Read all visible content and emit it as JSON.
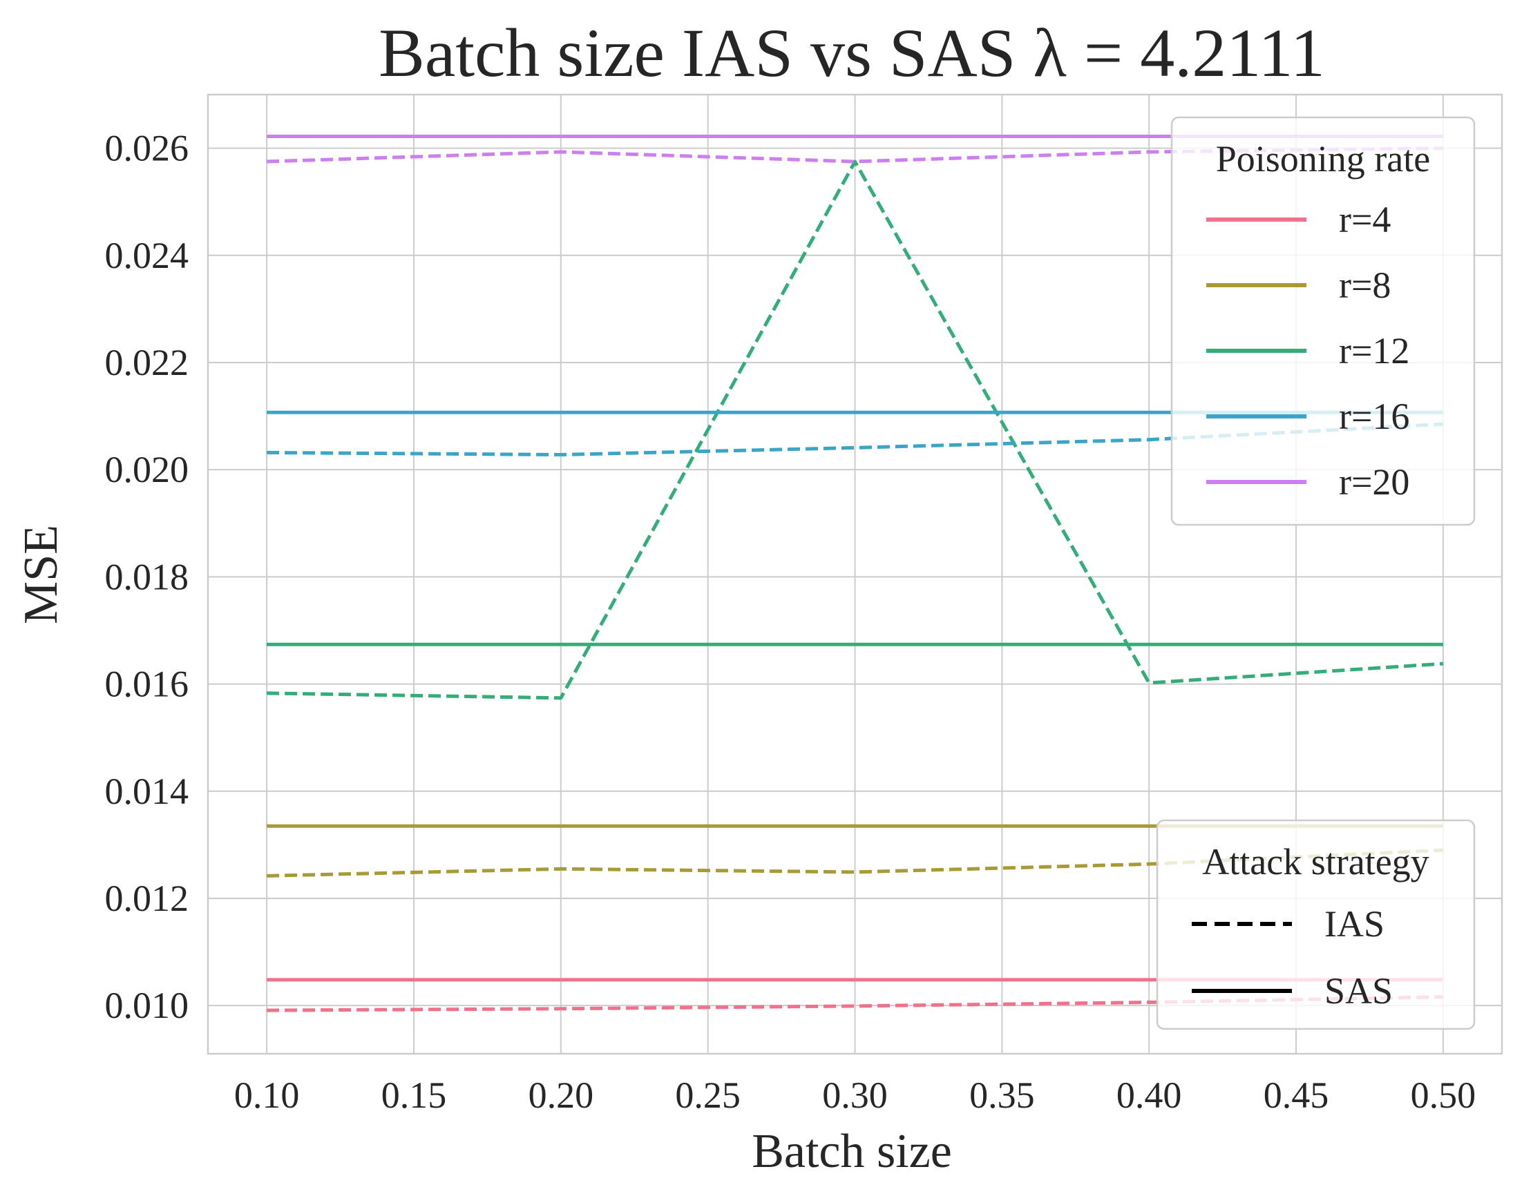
{
  "chart_data": {
    "type": "line",
    "title": "Batch size IAS vs SAS  λ = 4.2111",
    "xlabel": "Batch size",
    "ylabel": "MSE",
    "xlim": [
      0.08,
      0.52
    ],
    "ylim": [
      0.0091,
      0.027
    ],
    "x": [
      0.1,
      0.2,
      0.3,
      0.4,
      0.5
    ],
    "xticks": [
      "0.10",
      "0.15",
      "0.20",
      "0.25",
      "0.30",
      "0.35",
      "0.40",
      "0.45",
      "0.50"
    ],
    "yticks": [
      "0.010",
      "0.012",
      "0.014",
      "0.016",
      "0.018",
      "0.020",
      "0.022",
      "0.024",
      "0.026"
    ],
    "grid": true,
    "series": [
      {
        "name": "r=4",
        "strategy": "IAS",
        "color": "#f0718a",
        "values": [
          0.00991,
          0.00994,
          0.00999,
          0.01006,
          0.01016
        ]
      },
      {
        "name": "r=4",
        "strategy": "SAS",
        "color": "#f0718a",
        "values": [
          0.01048,
          0.01048,
          0.01048,
          0.01048,
          0.01048
        ]
      },
      {
        "name": "r=8",
        "strategy": "IAS",
        "color": "#a89a35",
        "values": [
          0.01242,
          0.01255,
          0.01249,
          0.01264,
          0.0129
        ]
      },
      {
        "name": "r=8",
        "strategy": "SAS",
        "color": "#a89a35",
        "values": [
          0.01335,
          0.01335,
          0.01335,
          0.01335,
          0.01335
        ]
      },
      {
        "name": "r=12",
        "strategy": "IAS",
        "color": "#34ad78",
        "values": [
          0.01583,
          0.01574,
          0.02575,
          0.01602,
          0.01638
        ]
      },
      {
        "name": "r=12",
        "strategy": "SAS",
        "color": "#34ad78",
        "values": [
          0.01674,
          0.01674,
          0.01674,
          0.01674,
          0.01674
        ]
      },
      {
        "name": "r=16",
        "strategy": "IAS",
        "color": "#3aa5c6",
        "values": [
          0.02032,
          0.02028,
          0.02041,
          0.02056,
          0.02085
        ]
      },
      {
        "name": "r=16",
        "strategy": "SAS",
        "color": "#3aa5c6",
        "values": [
          0.02107,
          0.02107,
          0.02107,
          0.02107,
          0.02107
        ]
      },
      {
        "name": "r=20",
        "strategy": "IAS",
        "color": "#cd7ff0",
        "values": [
          0.02575,
          0.02593,
          0.02575,
          0.02593,
          0.026
        ]
      },
      {
        "name": "r=20",
        "strategy": "SAS",
        "color": "#cd7ff0",
        "values": [
          0.02622,
          0.02622,
          0.02622,
          0.02622,
          0.02622
        ]
      }
    ],
    "legends": [
      {
        "title": "Poisoning rate",
        "position": "top-right",
        "entries": [
          {
            "label": "r=4",
            "color": "#f0718a",
            "style": "solid"
          },
          {
            "label": "r=8",
            "color": "#a89a35",
            "style": "solid"
          },
          {
            "label": "r=12",
            "color": "#34ad78",
            "style": "solid"
          },
          {
            "label": "r=16",
            "color": "#3aa5c6",
            "style": "solid"
          },
          {
            "label": "r=20",
            "color": "#cd7ff0",
            "style": "solid"
          }
        ]
      },
      {
        "title": "Attack strategy",
        "position": "bottom-right",
        "entries": [
          {
            "label": "IAS",
            "color": "#000000",
            "style": "dashed"
          },
          {
            "label": "SAS",
            "color": "#000000",
            "style": "solid"
          }
        ]
      }
    ]
  }
}
